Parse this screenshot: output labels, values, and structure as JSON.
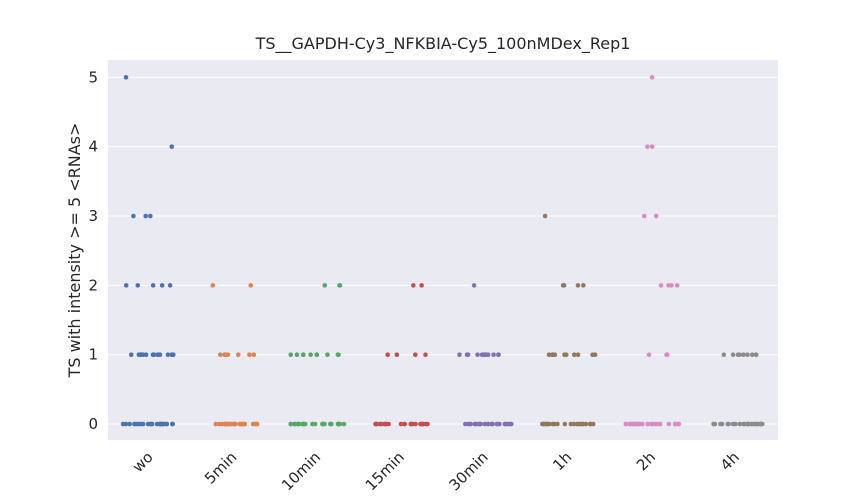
{
  "chart_data": {
    "type": "strip",
    "title": "TS__GAPDH-Cy3_NFKBIA-Cy5_100nMDex_Rep1",
    "y_label": "TS with intensity >= 5 <RNAs>",
    "categories": [
      "wo",
      "5min",
      "10min",
      "15min",
      "30min",
      "1h",
      "2h",
      "4h"
    ],
    "colors": [
      "#4c72b0",
      "#dd8452",
      "#55a868",
      "#c44e52",
      "#8172b3",
      "#937860",
      "#da8bc3",
      "#8c8c8c"
    ],
    "values": [
      [
        0,
        0,
        0,
        0,
        0,
        0,
        0,
        0,
        0,
        0,
        0,
        0,
        0,
        0,
        0,
        0,
        0,
        0,
        0,
        0,
        0,
        0,
        0,
        0,
        0,
        1,
        1,
        1,
        1,
        1,
        1,
        1,
        1,
        1,
        1,
        1,
        1,
        1,
        1,
        1,
        2,
        2,
        2,
        2,
        2,
        3,
        3,
        3,
        4,
        5
      ],
      [
        0,
        0,
        0,
        0,
        0,
        0,
        0,
        0,
        0,
        0,
        0,
        0,
        0,
        0,
        0,
        0,
        0,
        0,
        0,
        0,
        0,
        0,
        0,
        0,
        0,
        1,
        1,
        1,
        1,
        1,
        1,
        1,
        2,
        2
      ],
      [
        0,
        0,
        0,
        0,
        0,
        0,
        0,
        0,
        0,
        0,
        0,
        0,
        0,
        0,
        0,
        0,
        0,
        0,
        0,
        0,
        0,
        0,
        0,
        0,
        0,
        1,
        1,
        1,
        1,
        1,
        1,
        1,
        1,
        1,
        1,
        2,
        2,
        2
      ],
      [
        0,
        0,
        0,
        0,
        0,
        0,
        0,
        0,
        0,
        0,
        0,
        0,
        0,
        0,
        0,
        0,
        0,
        0,
        0,
        0,
        0,
        0,
        0,
        0,
        0,
        1,
        1,
        1,
        1,
        2,
        2
      ],
      [
        0,
        0,
        0,
        0,
        0,
        0,
        0,
        0,
        0,
        0,
        0,
        0,
        0,
        0,
        0,
        0,
        0,
        0,
        0,
        0,
        0,
        0,
        0,
        0,
        0,
        1,
        1,
        1,
        1,
        1,
        1,
        1,
        1,
        1,
        1,
        1,
        1,
        2
      ],
      [
        0,
        0,
        0,
        0,
        0,
        0,
        0,
        0,
        0,
        0,
        0,
        0,
        0,
        0,
        0,
        0,
        0,
        0,
        0,
        0,
        0,
        0,
        0,
        0,
        0,
        1,
        1,
        1,
        1,
        1,
        1,
        1,
        1,
        1,
        1,
        2,
        2,
        2,
        2,
        3
      ],
      [
        0,
        0,
        0,
        0,
        0,
        0,
        0,
        0,
        0,
        0,
        0,
        0,
        0,
        0,
        0,
        0,
        0,
        0,
        0,
        0,
        0,
        0,
        0,
        0,
        0,
        1,
        1,
        1,
        2,
        2,
        2,
        2,
        3,
        3,
        4,
        4,
        5
      ],
      [
        0,
        0,
        0,
        0,
        0,
        0,
        0,
        0,
        0,
        0,
        0,
        0,
        0,
        0,
        0,
        0,
        0,
        0,
        0,
        0,
        0,
        0,
        0,
        0,
        0,
        1,
        1,
        1,
        1,
        1,
        1,
        1,
        1,
        1
      ]
    ],
    "ylim": [
      -0.23,
      5.25
    ],
    "yticks": [
      0,
      1,
      2,
      3,
      4,
      5
    ],
    "grid": true
  }
}
